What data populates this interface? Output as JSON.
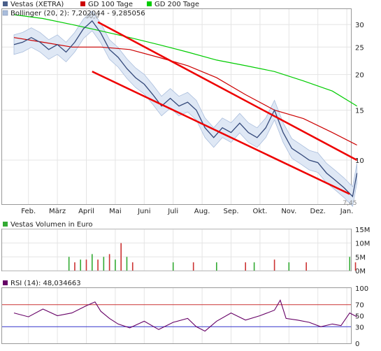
{
  "chart_data": [
    {
      "type": "line",
      "title": "",
      "xlabel": "",
      "ylabel": "",
      "y_scale": "log",
      "ylim": [
        7,
        34
      ],
      "grid": true,
      "legend_placement": "top-left",
      "x_ticks": [
        "Feb.",
        "März",
        "April",
        "Mai",
        "Juni",
        "Juli",
        "Aug.",
        "Sep.",
        "Okt.",
        "Nov.",
        "Dez.",
        "Jan."
      ],
      "y_ticks": [
        10,
        15,
        20,
        25,
        30
      ],
      "legend": [
        {
          "name": "Vestas (XETRA)",
          "color": "#4a5f8a"
        },
        {
          "name": "GD 100 Tage",
          "color": "#cc0000"
        },
        {
          "name": "GD 200 Tage",
          "color": "#00cc00"
        },
        {
          "name": "Bollinger (20, 2): 7,202044 - 9,285056",
          "color": "#a9bddc"
        }
      ],
      "annotations": {
        "high": "30,9",
        "low": "7,45"
      },
      "series": [
        {
          "name": "Vestas (XETRA)",
          "x": [
            0,
            0.3,
            0.6,
            0.9,
            1.2,
            1.5,
            1.8,
            2.1,
            2.4,
            2.7,
            3.0,
            3.3,
            3.6,
            3.9,
            4.2,
            4.5,
            4.8,
            5.1,
            5.4,
            5.7,
            6.0,
            6.3,
            6.6,
            6.9,
            7.2,
            7.5,
            7.8,
            8.1,
            8.4,
            8.7,
            9.0,
            9.3,
            9.6,
            9.9,
            10.2,
            10.5,
            10.8,
            11.1,
            11.4,
            11.7,
            11.85
          ],
          "values": [
            25.5,
            26.0,
            27.0,
            26.0,
            24.5,
            25.5,
            24.0,
            26.0,
            29.0,
            30.9,
            28.0,
            24.5,
            23.0,
            21.0,
            19.5,
            18.5,
            17.0,
            15.5,
            16.5,
            15.5,
            16.0,
            15.0,
            13.0,
            12.0,
            13.0,
            12.5,
            13.5,
            12.5,
            12.0,
            13.0,
            15.0,
            12.5,
            11.0,
            10.5,
            10.0,
            9.8,
            9.0,
            8.5,
            8.0,
            7.45,
            9.0
          ]
        },
        {
          "name": "GD 100 Tage",
          "x": [
            0,
            1,
            2,
            3,
            4,
            5,
            6,
            7,
            8,
            9,
            10,
            11,
            11.85
          ],
          "values": [
            27.0,
            26.0,
            25.0,
            25.0,
            24.5,
            23.0,
            21.5,
            19.5,
            17.0,
            15.0,
            14.0,
            12.5,
            11.3
          ]
        },
        {
          "name": "GD 200 Tage",
          "x": [
            0,
            1,
            2,
            3,
            4,
            5,
            6,
            7,
            8,
            9,
            10,
            11,
            11.85
          ],
          "values": [
            32.5,
            31.5,
            30.0,
            28.5,
            27.0,
            25.5,
            24.0,
            22.5,
            21.5,
            20.5,
            19.0,
            17.5,
            15.5
          ]
        },
        {
          "name": "Trendline upper",
          "x": [
            2.9,
            11.85
          ],
          "values": [
            30.6,
            10.0
          ]
        },
        {
          "name": "Trendline lower",
          "x": [
            2.7,
            11.6
          ],
          "values": [
            20.5,
            7.6
          ]
        }
      ]
    },
    {
      "type": "bar",
      "title": "",
      "ylim": [
        0,
        15
      ],
      "y_ticks": [
        "0M",
        "5M",
        "10M",
        "15M"
      ],
      "legend": [
        {
          "name": "Vestas Volumen in Euro",
          "color": "#33aa33"
        }
      ],
      "x": [
        1.9,
        2.1,
        2.3,
        2.5,
        2.7,
        2.9,
        3.1,
        3.3,
        3.5,
        3.7,
        3.9,
        4.1,
        5.5,
        6.2,
        7.0,
        8.0,
        8.3,
        9.0,
        9.5,
        10.1,
        11.6,
        11.8
      ],
      "values": [
        5,
        3,
        4,
        4,
        6,
        4,
        5,
        6,
        4,
        10,
        5,
        3,
        3,
        3,
        3,
        3,
        3,
        4,
        3,
        3,
        5,
        3
      ]
    },
    {
      "type": "line",
      "title": "",
      "ylim": [
        0,
        100
      ],
      "y_ticks": [
        0,
        30,
        50,
        70,
        100
      ],
      "reference_lines": [
        30,
        70
      ],
      "legend": [
        {
          "name": "RSI (14): 48,034663",
          "color": "#660066"
        }
      ],
      "series": [
        {
          "name": "RSI (14)",
          "x": [
            0,
            0.5,
            1.0,
            1.5,
            2.0,
            2.5,
            2.8,
            3.0,
            3.3,
            3.6,
            4.0,
            4.5,
            5.0,
            5.5,
            6.0,
            6.3,
            6.6,
            7.0,
            7.5,
            8.0,
            8.5,
            9.0,
            9.2,
            9.4,
            9.8,
            10.2,
            10.6,
            11.0,
            11.3,
            11.6,
            11.85
          ],
          "values": [
            55,
            48,
            62,
            50,
            55,
            68,
            75,
            58,
            45,
            35,
            28,
            40,
            25,
            38,
            45,
            30,
            22,
            40,
            55,
            42,
            50,
            60,
            78,
            45,
            42,
            38,
            30,
            35,
            32,
            55,
            48
          ]
        }
      ]
    }
  ]
}
